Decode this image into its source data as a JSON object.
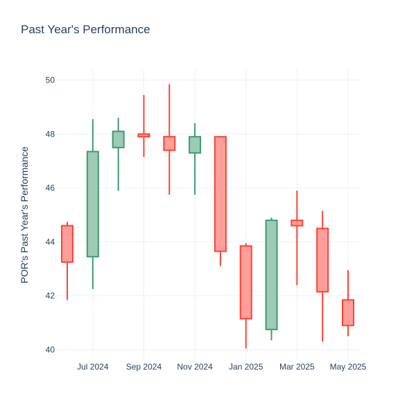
{
  "chart_data": {
    "type": "candlestick",
    "title": "Past Year's Performance",
    "xlabel": "",
    "ylabel": "POR's Past Year's Performance",
    "ylim": [
      39.6,
      50.4
    ],
    "yticks": [
      40,
      42,
      44,
      46,
      48,
      50
    ],
    "xticks": [
      {
        "label": "Jul 2024",
        "month": 1
      },
      {
        "label": "Sep 2024",
        "month": 3
      },
      {
        "label": "Nov 2024",
        "month": 5
      },
      {
        "label": "Jan 2025",
        "month": 7
      },
      {
        "label": "Mar 2025",
        "month": 9
      },
      {
        "label": "May 2025",
        "month": 11
      }
    ],
    "colors": {
      "up_line": "#3d9970",
      "up_fill": "#9ecbb4",
      "down_line": "#ff4136",
      "down_fill": "#ff9f9a",
      "grid": "#ebf0f8",
      "text": "#2a3f5f"
    },
    "grid": true,
    "candles": [
      {
        "period": "Jun 2024",
        "open": 44.6,
        "high": 44.75,
        "low": 41.85,
        "close": 43.25
      },
      {
        "period": "Jul 2024",
        "open": 43.45,
        "high": 48.55,
        "low": 42.25,
        "close": 47.35
      },
      {
        "period": "Aug 2024",
        "open": 47.5,
        "high": 48.6,
        "low": 45.9,
        "close": 48.1
      },
      {
        "period": "Sep 2024",
        "open": 48.0,
        "high": 49.45,
        "low": 47.15,
        "close": 47.9
      },
      {
        "period": "Oct 2024",
        "open": 47.9,
        "high": 49.85,
        "low": 45.75,
        "close": 47.4
      },
      {
        "period": "Nov 2024",
        "open": 47.3,
        "high": 48.4,
        "low": 45.75,
        "close": 47.9
      },
      {
        "period": "Dec 2024",
        "open": 47.9,
        "high": 47.9,
        "low": 43.1,
        "close": 43.65
      },
      {
        "period": "Jan 2025",
        "open": 43.85,
        "high": 43.95,
        "low": 40.05,
        "close": 41.15
      },
      {
        "period": "Feb 2025",
        "open": 40.75,
        "high": 44.9,
        "low": 40.35,
        "close": 44.8
      },
      {
        "period": "Mar 2025",
        "open": 44.8,
        "high": 45.9,
        "low": 42.4,
        "close": 44.6
      },
      {
        "period": "Apr 2025",
        "open": 44.5,
        "high": 45.15,
        "low": 40.3,
        "close": 42.15
      },
      {
        "period": "May 2025",
        "open": 41.85,
        "high": 42.95,
        "low": 40.5,
        "close": 40.9
      }
    ]
  }
}
